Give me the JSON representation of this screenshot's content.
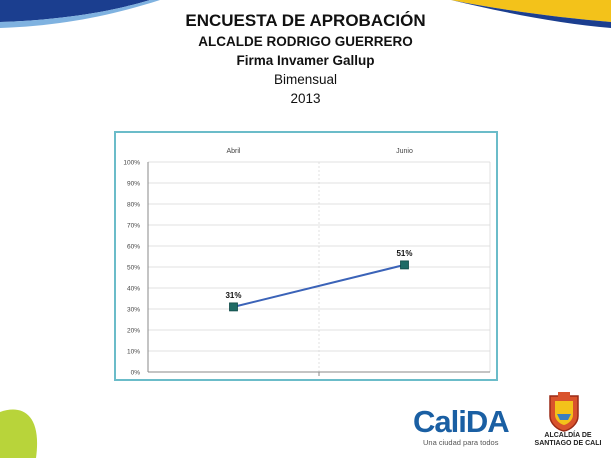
{
  "header": {
    "title": "ENCUESTA DE APROBACIÓN",
    "subtitle": "ALCALDE RODRIGO GUERRERO",
    "source": "Firma Invamer Gallup",
    "frequency": "Bimensual",
    "year": "2013"
  },
  "chart_data": {
    "type": "line",
    "categories": [
      "Abril",
      "Junio"
    ],
    "series": [
      {
        "values": [
          31,
          51
        ],
        "labels": [
          "31%",
          "51%"
        ],
        "color": "#3b63b8",
        "marker_color": "#1f6b66"
      }
    ],
    "ylim": [
      0,
      100
    ],
    "y_ticks": [
      "0%",
      "10%",
      "20%",
      "30%",
      "40%",
      "50%",
      "60%",
      "70%",
      "80%",
      "90%",
      "100%"
    ],
    "category_axis_position": "top",
    "grid": true
  },
  "footer": {
    "brand": "CaliDA",
    "slogan": "Una ciudad para todos",
    "alcaldia_line1": "ALCALDÍA DE",
    "alcaldia_line2": "SANTIAGO DE CALI"
  },
  "colors": {
    "frame": "#6bbcc9",
    "brand_blue": "#1a5fa3",
    "accent_yellow": "#f3c21a",
    "accent_green": "#b8d43a",
    "corner_blue": "#1b3e8f"
  }
}
